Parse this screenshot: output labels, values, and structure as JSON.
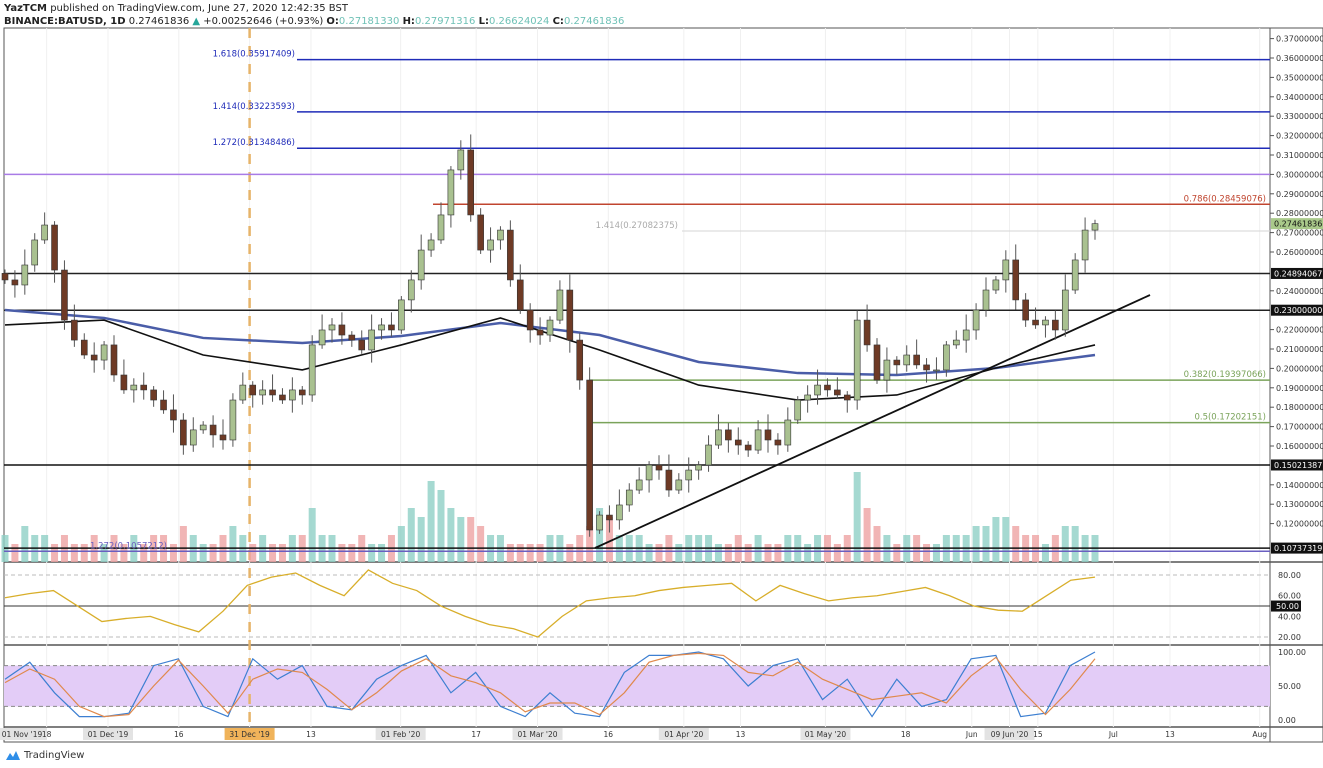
{
  "header": {
    "publisher": "YazTCM",
    "published_text": "published on TradingView.com, June 27, 2020 12:42:35 BST",
    "symbol": "BINANCE:BATUSD, 1D",
    "last": "0.27461836",
    "change": "+0.00252646 (+0.93%)",
    "o_label": "O:",
    "open": "0.27181330",
    "h_label": "H:",
    "high": "0.27971316",
    "l_label": "L:",
    "low": "0.26624024",
    "c_label": "C:",
    "close": "0.27461836"
  },
  "footer": {
    "brand": "TradingView",
    "icon": "tradingview-logo-icon"
  },
  "colors": {
    "up": "#a9c190",
    "down": "#6e3a25",
    "vol_up": "#8fcfc6",
    "vol_down": "#eea3a3",
    "ma200": "#4a5da8",
    "ma100": "#111111",
    "rsi": "#d8ae2a",
    "stoch_k": "#3d7fd1",
    "stoch_d": "#e0894c",
    "fib_ext": "#1f2bb8",
    "fib_red": "#c0452f",
    "fib_green": "#7aa35a",
    "stoch_band": "#e3ccf7"
  },
  "chart_data": {
    "type": "candlestick",
    "price_scale": "linear",
    "ylim": [
      0.105,
      0.375
    ],
    "closes": [
      0.2456,
      0.243,
      0.2533,
      0.2662,
      0.2739,
      0.2507,
      0.2249,
      0.2146,
      0.2069,
      0.2043,
      0.2121,
      0.1966,
      0.1889,
      0.1914,
      0.1889,
      0.1837,
      0.1786,
      0.1734,
      0.1605,
      0.1683,
      0.1708,
      0.1657,
      0.1631,
      0.1837,
      0.1914,
      0.1863,
      0.1889,
      0.1863,
      0.1837,
      0.1889,
      0.1863,
      0.2121,
      0.2198,
      0.2224,
      0.2172,
      0.2146,
      0.2095,
      0.2198,
      0.2224,
      0.2198,
      0.2353,
      0.2456,
      0.261,
      0.2662,
      0.2791,
      0.3023,
      0.3126,
      0.2791,
      0.261,
      0.2662,
      0.2713,
      0.2456,
      0.2301,
      0.2198,
      0.2172,
      0.2249,
      0.2404,
      0.2146,
      0.194,
      0.1167,
      0.1244,
      0.1219,
      0.1296,
      0.1373,
      0.1425,
      0.1502,
      0.1476,
      0.1373,
      0.1425,
      0.1476,
      0.1502,
      0.1605,
      0.1683,
      0.1631,
      0.1605,
      0.1579,
      0.1683,
      0.1631,
      0.1605,
      0.1734,
      0.1837,
      0.1863,
      0.1914,
      0.1889,
      0.1863,
      0.1837,
      0.2249,
      0.2121,
      0.194,
      0.2043,
      0.2018,
      0.2069,
      0.2018,
      0.1992,
      0.1992,
      0.2121,
      0.2146,
      0.2198,
      0.2301,
      0.2404,
      0.2456,
      0.2559,
      0.2353,
      0.2249,
      0.2224,
      0.2249,
      0.2198,
      0.2404,
      0.2559,
      0.2713,
      0.2746
    ],
    "volume_relative": [
      3,
      2,
      4,
      3,
      3,
      2,
      3,
      2,
      2,
      3,
      2,
      3,
      2,
      3,
      2,
      3,
      3,
      2,
      4,
      3,
      2,
      2,
      3,
      4,
      3,
      2,
      3,
      2,
      2,
      3,
      3,
      6,
      3,
      3,
      2,
      2,
      3,
      2,
      2,
      3,
      4,
      6,
      5,
      9,
      8,
      6,
      5,
      5,
      4,
      3,
      3,
      2,
      2,
      2,
      2,
      3,
      3,
      2,
      3,
      4,
      6,
      5,
      3,
      3,
      3,
      2,
      2,
      3,
      2,
      3,
      3,
      3,
      2,
      2,
      3,
      2,
      3,
      2,
      2,
      3,
      3,
      2,
      3,
      3,
      2,
      3,
      10,
      6,
      4,
      3,
      2,
      3,
      3,
      2,
      2,
      3,
      3,
      3,
      4,
      4,
      5,
      5,
      4,
      3,
      3,
      2,
      3,
      4,
      4,
      3,
      3
    ],
    "ma200": [
      0.2301,
      0.226,
      0.2157,
      0.2131,
      0.2167,
      0.2234,
      0.2172,
      0.2033,
      0.1976,
      0.1966,
      0.2002,
      0.2069
    ],
    "ma100": [
      0.2224,
      0.2249,
      0.2069,
      0.1992,
      0.2121,
      0.226,
      0.2095,
      0.1914,
      0.1837,
      0.1863,
      0.2002,
      0.2121
    ],
    "levels": [
      {
        "label": "1.618",
        "value": "0.35917409",
        "price": 0.35917409,
        "color": "#1f2bb8",
        "from": "mid"
      },
      {
        "label": "1.414",
        "value": "0.33223593",
        "price": 0.33223593,
        "color": "#1f2bb8",
        "from": "mid"
      },
      {
        "label": "1.272",
        "value": "0.31348486",
        "price": 0.31348486,
        "color": "#1f2bb8",
        "from": "mid"
      },
      {
        "label": "",
        "value": "",
        "price": 0.3,
        "color": "#a97be6",
        "from": "left"
      },
      {
        "label": "0.786",
        "value": "0.28459076",
        "price": 0.28459076,
        "color": "#c0452f",
        "from": "peak"
      },
      {
        "label": "1.414",
        "value": "0.27082375",
        "price": 0.27082375,
        "color": "#d6d6d6",
        "from": "right"
      },
      {
        "label": "",
        "value": "",
        "price": 0.24894067,
        "color": "#222222",
        "from": "left"
      },
      {
        "label": "",
        "value": "",
        "price": 0.23,
        "color": "#222222",
        "from": "left"
      },
      {
        "label": "0.382",
        "value": "0.19397066",
        "price": 0.19397066,
        "color": "#7aa35a",
        "from": "crash"
      },
      {
        "label": "0.5",
        "value": "0.17202151",
        "price": 0.17202151,
        "color": "#7aa35a",
        "from": "crash"
      },
      {
        "label": "",
        "value": "",
        "price": 0.15021387,
        "color": "#111111",
        "from": "left"
      },
      {
        "label": "",
        "value": "",
        "price": 0.10737319,
        "color": "#111111",
        "from": "left"
      },
      {
        "label": "1.272",
        "value": "0.1057212",
        "price": 0.1057212,
        "color": "#6a5fc0",
        "from": "left"
      }
    ],
    "price_ticks": [
      "0.37000000",
      "0.36000000",
      "0.35000000",
      "0.34000000",
      "0.33000000",
      "0.32000000",
      "0.31000000",
      "0.30000000",
      "0.29000000",
      "0.28000000",
      "0.27000000",
      "0.26000000",
      "0.24000000",
      "0.22000000",
      "0.21000000",
      "0.20000000",
      "0.19000000",
      "0.18000000",
      "0.17000000",
      "0.16000000",
      "0.14000000",
      "0.13000000",
      "0.12000000"
    ],
    "price_badges": [
      {
        "text": "0.27461836",
        "bg": "#a9c98a",
        "fg": "#111"
      },
      {
        "text": "0.24894067",
        "bg": "#111",
        "fg": "#fff"
      },
      {
        "text": "0.23000000",
        "bg": "#111",
        "fg": "#fff"
      },
      {
        "text": "0.15021387",
        "bg": "#111",
        "fg": "#fff"
      },
      {
        "text": "0.10737319",
        "bg": "#111",
        "fg": "#fff"
      }
    ],
    "rsi": {
      "ticks": [
        "80.00",
        "60.00",
        "40.00",
        "20.00"
      ],
      "badge": "50.00",
      "hline": 50,
      "values": [
        58,
        62,
        65,
        50,
        35,
        38,
        40,
        32,
        25,
        45,
        70,
        78,
        82,
        70,
        60,
        85,
        72,
        65,
        50,
        40,
        32,
        28,
        20,
        40,
        55,
        58,
        60,
        65,
        68,
        70,
        72,
        55,
        70,
        62,
        55,
        58,
        60,
        64,
        68,
        60,
        50,
        46,
        45,
        60,
        75,
        78
      ]
    },
    "stoch": {
      "ticks": [
        "100.00",
        "50.00",
        "0.00"
      ],
      "band": [
        20,
        80
      ],
      "k": [
        60,
        85,
        40,
        5,
        5,
        10,
        80,
        90,
        20,
        5,
        90,
        60,
        80,
        20,
        15,
        60,
        80,
        95,
        40,
        70,
        20,
        5,
        40,
        10,
        5,
        70,
        95,
        95,
        100,
        90,
        50,
        80,
        90,
        30,
        60,
        5,
        60,
        20,
        30,
        90,
        95,
        5,
        10,
        80,
        100
      ],
      "d": [
        55,
        75,
        60,
        20,
        5,
        8,
        50,
        88,
        50,
        10,
        60,
        75,
        70,
        45,
        15,
        40,
        72,
        90,
        65,
        55,
        40,
        12,
        25,
        25,
        8,
        40,
        85,
        95,
        98,
        95,
        70,
        65,
        85,
        60,
        45,
        30,
        35,
        40,
        25,
        65,
        92,
        45,
        8,
        45,
        90
      ]
    },
    "time_ticks": [
      {
        "text": "01 Nov '19",
        "date": "2019-11-01",
        "sticky": true
      },
      {
        "text": "18",
        "date": "2019-11-18"
      },
      {
        "text": "01 Dec '19",
        "date": "2019-12-01"
      },
      {
        "text": "16",
        "date": "2019-12-16"
      },
      {
        "text": "31 Dec '19",
        "date": "2019-12-31",
        "highlight": true
      },
      {
        "text": "13",
        "date": "2020-01-13"
      },
      {
        "text": "01 Feb '20",
        "date": "2020-02-01"
      },
      {
        "text": "17",
        "date": "2020-02-17"
      },
      {
        "text": "01 Mar '20",
        "date": "2020-03-01"
      },
      {
        "text": "16",
        "date": "2020-03-16"
      },
      {
        "text": "01 Apr '20",
        "date": "2020-04-01"
      },
      {
        "text": "13",
        "date": "2020-04-13"
      },
      {
        "text": "01 May '20",
        "date": "2020-05-01"
      },
      {
        "text": "18",
        "date": "2020-05-18"
      },
      {
        "text": "Jun",
        "date": "2020-06-01"
      },
      {
        "text": "09 Jun '20",
        "date": "2020-06-09"
      },
      {
        "text": "15",
        "date": "2020-06-15"
      },
      {
        "text": "Jul",
        "date": "2020-07-01"
      },
      {
        "text": "13",
        "date": "2020-07-13"
      },
      {
        "text": "Aug",
        "date": "2020-08-01"
      }
    ],
    "marker_date": "2019-12-31"
  }
}
